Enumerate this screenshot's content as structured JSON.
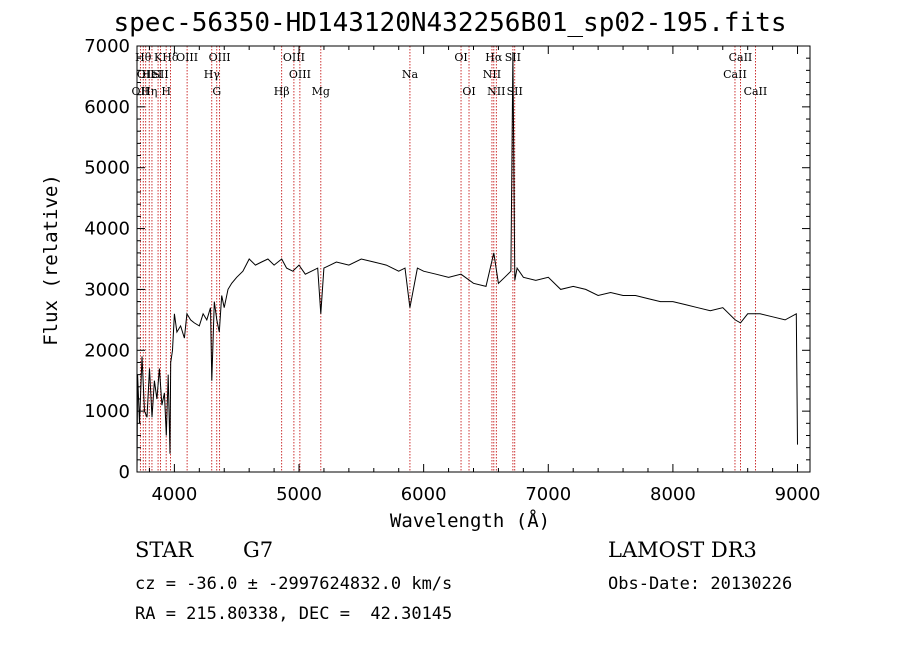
{
  "title": "spec-56350-HD143120N432256B01_sp02-195.fits",
  "info": {
    "class": "STAR",
    "subclass": "G7",
    "survey": "LAMOST DR3",
    "cz": "cz = -36.0 ± -2997624832.0 km/s",
    "obs_date": "Obs-Date: 20130226",
    "radec": "RA = 215.80338, DEC =  42.30145"
  },
  "chart_data": {
    "type": "line",
    "title": "spec-56350-HD143120N432256B01_sp02-195.fits",
    "xlabel": "Wavelength (Å)",
    "ylabel": "Flux (relative)",
    "xlim": [
      3700,
      9100
    ],
    "ylim": [
      0,
      7000
    ],
    "xticks": [
      4000,
      5000,
      6000,
      7000,
      8000,
      9000
    ],
    "yticks": [
      0,
      1000,
      2000,
      3000,
      4000,
      5000,
      6000,
      7000
    ],
    "grid": false,
    "series": [
      {
        "x": [
          3700,
          3705,
          3720,
          3740,
          3760,
          3780,
          3800,
          3820,
          3840,
          3860,
          3880,
          3900,
          3920,
          3935,
          3950,
          3965,
          3970,
          3985,
          4000,
          4020,
          4050,
          4080,
          4100,
          4130,
          4160,
          4200,
          4230,
          4260,
          4290,
          4300,
          4320,
          4340,
          4360,
          4380,
          4400,
          4430,
          4460,
          4500,
          4550,
          4600,
          4650,
          4700,
          4750,
          4800,
          4861,
          4900,
          4950,
          5000,
          5050,
          5100,
          5150,
          5175,
          5200,
          5250,
          5300,
          5400,
          5500,
          5600,
          5700,
          5800,
          5850,
          5890,
          5950,
          6000,
          6100,
          6200,
          6300,
          6400,
          6500,
          6563,
          6600,
          6650,
          6700,
          6716,
          6731,
          6750,
          6800,
          6900,
          7000,
          7100,
          7200,
          7300,
          7400,
          7500,
          7600,
          7700,
          7800,
          7900,
          8000,
          8100,
          8200,
          8300,
          8400,
          8500,
          8542,
          8600,
          8700,
          8800,
          8900,
          8990,
          9000
        ],
        "y": [
          0,
          1600,
          800,
          1900,
          1000,
          900,
          1700,
          900,
          1500,
          1200,
          1700,
          1100,
          1300,
          600,
          1600,
          300,
          1800,
          2000,
          2600,
          2300,
          2400,
          2200,
          2600,
          2500,
          2450,
          2400,
          2600,
          2500,
          2700,
          1500,
          2800,
          2500,
          2300,
          2900,
          2700,
          3000,
          3100,
          3200,
          3300,
          3500,
          3400,
          3450,
          3500,
          3400,
          3500,
          3350,
          3300,
          3400,
          3250,
          3300,
          3350,
          2600,
          3350,
          3400,
          3450,
          3400,
          3500,
          3450,
          3400,
          3300,
          3350,
          2700,
          3350,
          3300,
          3250,
          3200,
          3250,
          3100,
          3050,
          3600,
          3100,
          3200,
          3300,
          6900,
          3150,
          3350,
          3200,
          3150,
          3200,
          3000,
          3050,
          3000,
          2900,
          2950,
          2900,
          2900,
          2850,
          2800,
          2800,
          2750,
          2700,
          2650,
          2700,
          2500,
          2450,
          2600,
          2600,
          2550,
          2500,
          2600,
          450
        ]
      }
    ],
    "line_markers": [
      {
        "wl": 3727,
        "label": "OII",
        "row": 2
      },
      {
        "wl": 3750,
        "label": "Hθ",
        "row": 0
      },
      {
        "wl": 3770,
        "label": "OII",
        "row": 1
      },
      {
        "wl": 3798,
        "label": "Hη",
        "row": 2
      },
      {
        "wl": 3820,
        "label": "HeI",
        "row": 1
      },
      {
        "wl": 3869,
        "label": "K",
        "row": 0
      },
      {
        "wl": 3889,
        "label": "SII",
        "row": 1
      },
      {
        "wl": 3934,
        "label": "H",
        "row": 2
      },
      {
        "wl": 3968,
        "label": "Hδ",
        "row": 0
      },
      {
        "wl": 4102,
        "label": "OIII",
        "row": 0
      },
      {
        "wl": 4300,
        "label": "Hγ",
        "row": 1
      },
      {
        "wl": 4340,
        "label": "G",
        "row": 2
      },
      {
        "wl": 4363,
        "label": "OIII",
        "row": 0
      },
      {
        "wl": 4861,
        "label": "Hβ",
        "row": 2
      },
      {
        "wl": 4959,
        "label": "OIII",
        "row": 0
      },
      {
        "wl": 5007,
        "label": "OIII",
        "row": 1
      },
      {
        "wl": 5175,
        "label": "Mg",
        "row": 2
      },
      {
        "wl": 5890,
        "label": "Na",
        "row": 1
      },
      {
        "wl": 6300,
        "label": "OI",
        "row": 0
      },
      {
        "wl": 6364,
        "label": "OI",
        "row": 2
      },
      {
        "wl": 6548,
        "label": "NII",
        "row": 1
      },
      {
        "wl": 6563,
        "label": "Hα",
        "row": 0
      },
      {
        "wl": 6583,
        "label": "NII",
        "row": 2
      },
      {
        "wl": 6716,
        "label": "SII",
        "row": 0
      },
      {
        "wl": 6731,
        "label": "SII",
        "row": 2
      },
      {
        "wl": 8498,
        "label": "CaII",
        "row": 1
      },
      {
        "wl": 8542,
        "label": "CaII",
        "row": 0
      },
      {
        "wl": 8662,
        "label": "CaII",
        "row": 2
      }
    ]
  }
}
